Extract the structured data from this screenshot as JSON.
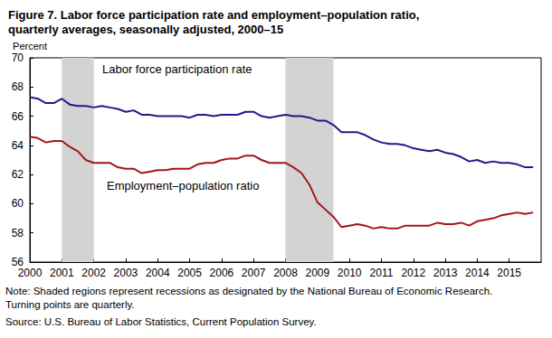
{
  "chart_data": {
    "type": "line",
    "title": "Figure 7. Labor force participation rate and employment–population ratio,\nquarterly averages, seasonally adjusted, 2000–15",
    "ylabel": "Percent",
    "x": [
      2000,
      2000.25,
      2000.5,
      2000.75,
      2001,
      2001.25,
      2001.5,
      2001.75,
      2002,
      2002.25,
      2002.5,
      2002.75,
      2003,
      2003.25,
      2003.5,
      2003.75,
      2004,
      2004.25,
      2004.5,
      2004.75,
      2005,
      2005.25,
      2005.5,
      2005.75,
      2006,
      2006.25,
      2006.5,
      2006.75,
      2007,
      2007.25,
      2007.5,
      2007.75,
      2008,
      2008.25,
      2008.5,
      2008.75,
      2009,
      2009.25,
      2009.5,
      2009.75,
      2010,
      2010.25,
      2010.5,
      2010.75,
      2011,
      2011.25,
      2011.5,
      2011.75,
      2012,
      2012.25,
      2012.5,
      2012.75,
      2013,
      2013.25,
      2013.5,
      2013.75,
      2014,
      2014.25,
      2014.5,
      2014.75,
      2015,
      2015.25,
      2015.5,
      2015.75
    ],
    "series": [
      {
        "name": "Labor force participation rate",
        "color": "#1c1c8a",
        "values": [
          67.3,
          67.2,
          66.9,
          66.9,
          67.2,
          66.8,
          66.7,
          66.7,
          66.6,
          66.7,
          66.6,
          66.5,
          66.3,
          66.4,
          66.1,
          66.1,
          66.0,
          66.0,
          66.0,
          66.0,
          65.9,
          66.1,
          66.1,
          66.0,
          66.1,
          66.1,
          66.1,
          66.3,
          66.3,
          66.0,
          65.9,
          66.0,
          66.1,
          66.0,
          66.0,
          65.9,
          65.7,
          65.7,
          65.4,
          64.9,
          64.9,
          64.9,
          64.7,
          64.4,
          64.2,
          64.1,
          64.1,
          64.0,
          63.8,
          63.7,
          63.6,
          63.7,
          63.5,
          63.4,
          63.2,
          62.9,
          63.0,
          62.8,
          62.9,
          62.8,
          62.8,
          62.7,
          62.5,
          62.5
        ]
      },
      {
        "name": "Employment–population ratio",
        "color": "#a3161a",
        "values": [
          64.6,
          64.5,
          64.2,
          64.3,
          64.3,
          63.9,
          63.6,
          63.0,
          62.8,
          62.8,
          62.8,
          62.5,
          62.4,
          62.4,
          62.1,
          62.2,
          62.3,
          62.3,
          62.4,
          62.4,
          62.4,
          62.7,
          62.8,
          62.8,
          63.0,
          63.1,
          63.1,
          63.3,
          63.3,
          63.0,
          62.8,
          62.8,
          62.8,
          62.5,
          62.1,
          61.3,
          60.1,
          59.6,
          59.1,
          58.4,
          58.5,
          58.6,
          58.5,
          58.3,
          58.4,
          58.3,
          58.3,
          58.5,
          58.5,
          58.5,
          58.5,
          58.7,
          58.6,
          58.6,
          58.7,
          58.5,
          58.8,
          58.9,
          59.0,
          59.2,
          59.3,
          59.4,
          59.3,
          59.4
        ]
      }
    ],
    "xlim": [
      2000,
      2016
    ],
    "xticks": [
      2000,
      2001,
      2002,
      2003,
      2004,
      2005,
      2006,
      2007,
      2008,
      2009,
      2010,
      2011,
      2012,
      2013,
      2014,
      2015
    ],
    "ylim": [
      56,
      70
    ],
    "yticks": [
      56,
      58,
      60,
      62,
      64,
      66,
      68,
      70
    ],
    "grid": false,
    "recessions": [
      {
        "start": 2001,
        "end": 2002
      },
      {
        "start": 2008,
        "end": 2009.5
      }
    ],
    "notes": [
      "Note: Shaded regions represent recessions as designated by the National Bureau of Economic Research.",
      "Turning points are quarterly.",
      "Source: U.S. Bureau of Labor Statistics, Current Population Survey."
    ]
  }
}
